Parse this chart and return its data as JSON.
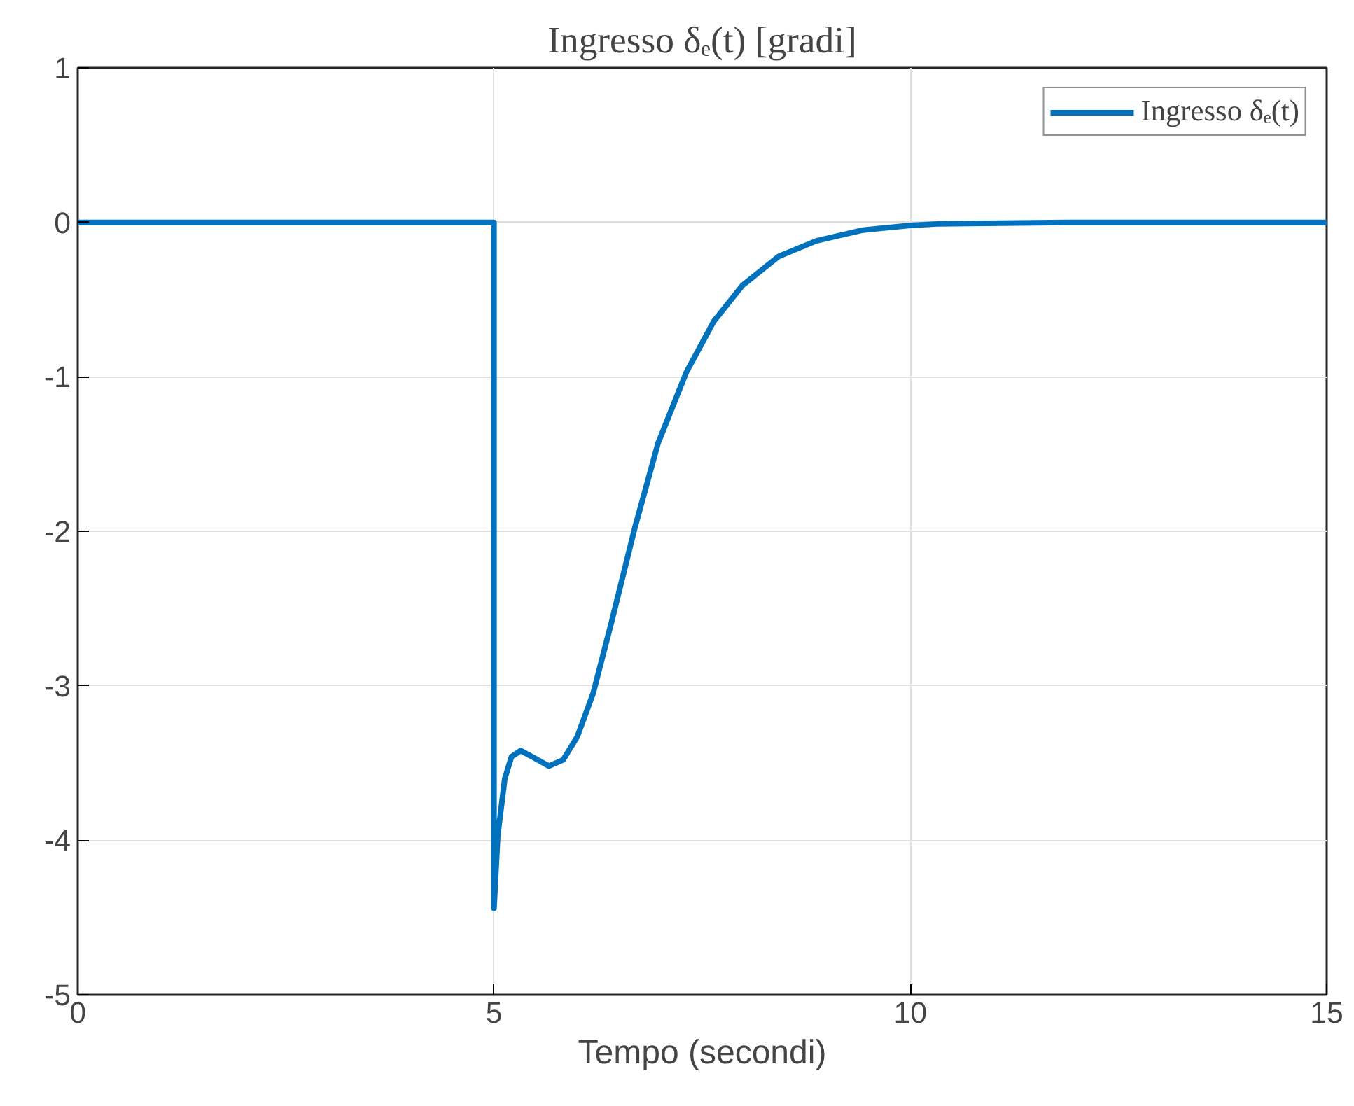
{
  "chart_data": {
    "type": "line",
    "title": "Ingresso δₑ(t) [gradi]",
    "xlabel": "Tempo (secondi)",
    "series": [
      {
        "name": "Ingresso δₑ(t)",
        "color": "#0072bd",
        "x": [
          0,
          5,
          5,
          5.045,
          5.13,
          5.21,
          5.32,
          5.46,
          5.66,
          5.83,
          6.0,
          6.19,
          6.41,
          6.69,
          6.97,
          7.31,
          7.64,
          7.98,
          8.42,
          8.87,
          9.43,
          10,
          10.32,
          12,
          15
        ],
        "values": [
          0,
          0,
          -4.44,
          -3.97,
          -3.6,
          -3.46,
          -3.42,
          -3.46,
          -3.52,
          -3.48,
          -3.33,
          -3.05,
          -2.59,
          -1.98,
          -1.43,
          -0.97,
          -0.64,
          -0.41,
          -0.22,
          -0.12,
          -0.05,
          -0.02,
          -0.01,
          0,
          0
        ]
      }
    ],
    "xlim": [
      0,
      15
    ],
    "ylim": [
      -5,
      1
    ],
    "xticks": [
      0,
      5,
      10,
      15
    ],
    "yticks": [
      -5,
      -4,
      -3,
      -2,
      -1,
      0,
      1
    ],
    "grid": true,
    "legend": "top right",
    "line_style": "solid",
    "marker": "none"
  }
}
